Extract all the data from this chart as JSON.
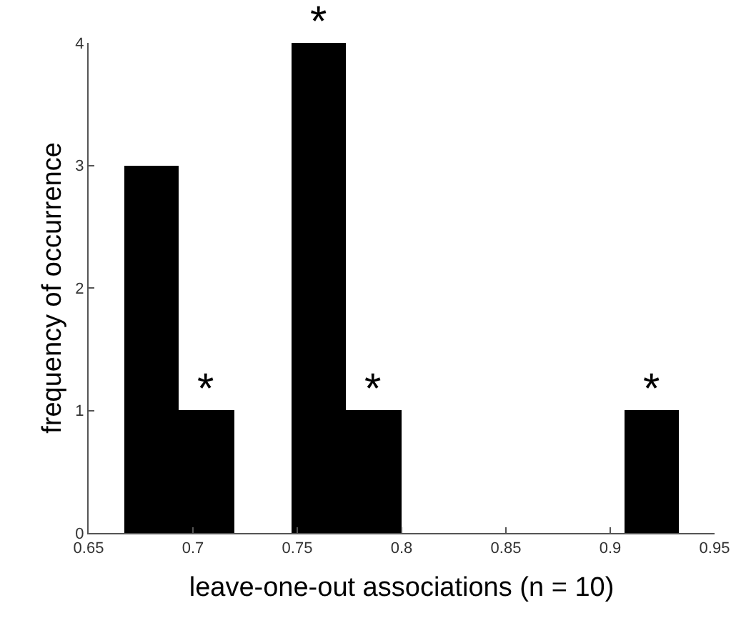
{
  "chart_data": {
    "type": "histogram",
    "xlabel": "leave-one-out associations (n = 10)",
    "ylabel": "frequency of occurrence",
    "bins": [
      0.667,
      0.693,
      0.72,
      0.747,
      0.773,
      0.8,
      0.907,
      0.933
    ],
    "values": [
      3,
      1,
      0,
      4,
      1,
      0,
      1
    ],
    "color": "#000000",
    "xlim": [
      0.65,
      0.95
    ],
    "xticks": [
      0.65,
      0.7,
      0.75,
      0.8,
      0.85,
      0.9,
      0.95
    ],
    "ylim": [
      0,
      4
    ],
    "yticks": [
      0,
      1,
      2,
      3,
      4
    ],
    "annotations": [
      {
        "text": "*",
        "x": 0.7065,
        "y": 1
      },
      {
        "text": "*",
        "x": 0.76,
        "y": 4
      },
      {
        "text": "*",
        "x": 0.7865,
        "y": 1
      },
      {
        "text": "*",
        "x": 0.92,
        "y": 1
      }
    ]
  }
}
